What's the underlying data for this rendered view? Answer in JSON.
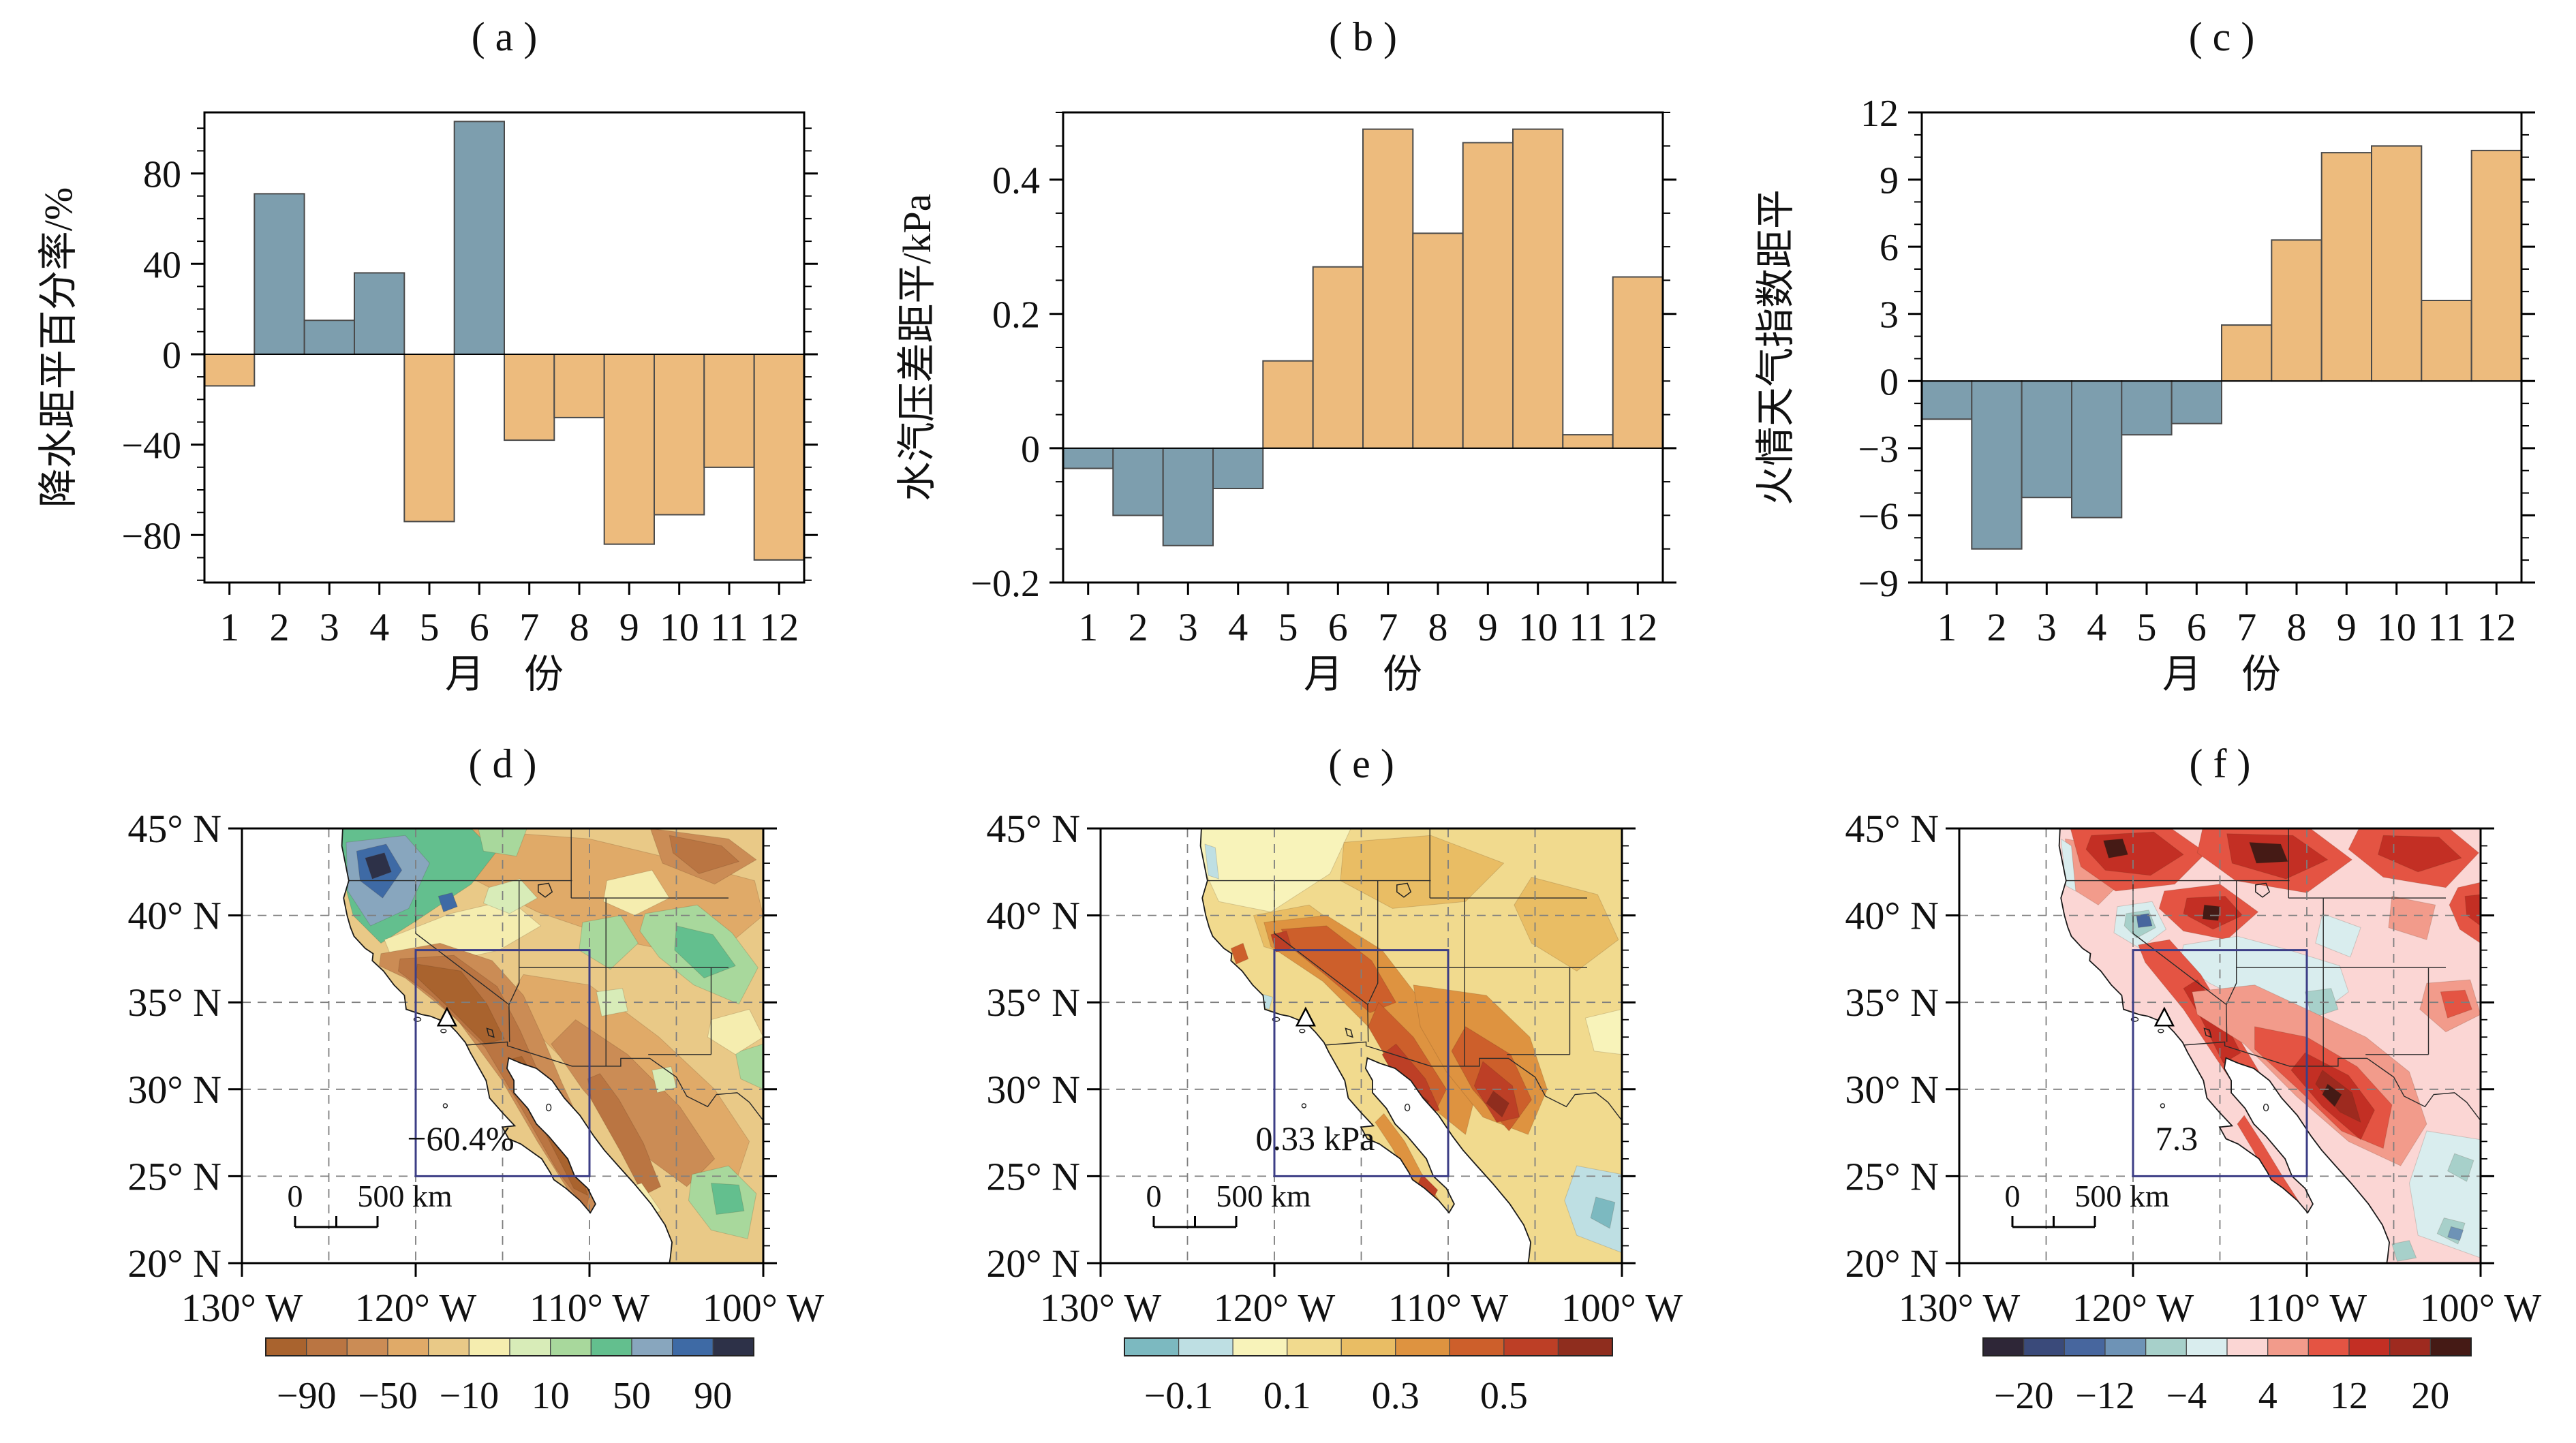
{
  "months": [
    "1",
    "2",
    "3",
    "4",
    "5",
    "6",
    "7",
    "8",
    "9",
    "10",
    "11",
    "12"
  ],
  "map_shared": {
    "lat_tick_values": [
      45,
      40,
      35,
      30,
      25,
      20
    ],
    "lat_tick_labels": [
      "45° N",
      "40° N",
      "35° N",
      "30° N",
      "25° N",
      "20° N"
    ],
    "lon_tick_values": [
      130,
      120,
      110,
      100
    ],
    "lon_tick_labels": [
      "130° W",
      "120° W",
      "110° W",
      "100° W"
    ],
    "study_box": {
      "lon_w_max": 120,
      "lon_w_min": 110,
      "lat_min": 25,
      "lat_max": 38
    },
    "marker": {
      "lon_w": 118.2,
      "lat": 34.1
    },
    "scale_bar": {
      "zero_label": "0",
      "label": "500 km"
    }
  },
  "chart_data": [
    {
      "type": "bar",
      "panel": "a",
      "title": "( a )",
      "xlabel": "月　份",
      "ylabel": "降水距平百分率/%",
      "unit": "%",
      "categories": [
        "1",
        "2",
        "3",
        "4",
        "5",
        "6",
        "7",
        "8",
        "9",
        "10",
        "11",
        "12"
      ],
      "values": [
        -14,
        71,
        15,
        36,
        -74,
        103,
        -38,
        -28,
        -84,
        -71,
        -50,
        -91
      ],
      "ylim": [
        -101,
        107
      ],
      "yticks": [
        -80,
        -40,
        0,
        40,
        80
      ],
      "ytick_labels": [
        "−80",
        "−40",
        "0",
        "40",
        "80"
      ],
      "minor_tick_step": 10,
      "positive_color": "#7d9eae",
      "negative_color": "#edbb7d",
      "grid": false,
      "legend": false
    },
    {
      "type": "bar",
      "panel": "b",
      "title": "( b )",
      "xlabel": "月　份",
      "ylabel": "水汽压差距平/kPa",
      "unit": "kPa",
      "categories": [
        "1",
        "2",
        "3",
        "4",
        "5",
        "6",
        "7",
        "8",
        "9",
        "10",
        "11",
        "12"
      ],
      "values": [
        -0.03,
        -0.1,
        -0.145,
        -0.06,
        0.13,
        0.27,
        0.475,
        0.32,
        0.455,
        0.475,
        0.02,
        0.255
      ],
      "ylim": [
        -0.2,
        0.5
      ],
      "yticks": [
        -0.2,
        0,
        0.2,
        0.4
      ],
      "ytick_labels": [
        "−0.2",
        "0",
        "0.2",
        "0.4"
      ],
      "minor_tick_step": 0.05,
      "positive_color": "#edbb7d",
      "negative_color": "#7d9eae",
      "grid": false,
      "legend": false
    },
    {
      "type": "bar",
      "panel": "c",
      "title": "( c )",
      "xlabel": "月　份",
      "ylabel": "火情天气指数距平",
      "unit": "",
      "categories": [
        "1",
        "2",
        "3",
        "4",
        "5",
        "6",
        "7",
        "8",
        "9",
        "10",
        "11",
        "12"
      ],
      "values": [
        -1.7,
        -7.5,
        -5.2,
        -6.1,
        -2.4,
        -1.9,
        2.5,
        6.3,
        10.2,
        10.5,
        3.6,
        10.3
      ],
      "ylim": [
        -9,
        12
      ],
      "yticks": [
        -9,
        -6,
        -3,
        0,
        3,
        6,
        9,
        12
      ],
      "ytick_labels": [
        "−9",
        "−6",
        "−3",
        "0",
        "3",
        "6",
        "9",
        "12"
      ],
      "minor_tick_step": 1,
      "positive_color": "#edbb7d",
      "negative_color": "#7d9eae",
      "grid": false,
      "legend": false
    },
    {
      "type": "heatmap",
      "panel": "d",
      "title": "( d )",
      "units": "%",
      "annotation": "−60.4%",
      "lon_range_w": [
        130,
        100
      ],
      "lat_range_n": [
        20,
        45
      ],
      "base_color_index": 4,
      "colorbar_colors": [
        "#a9632e",
        "#ba7542",
        "#cb8c55",
        "#e0aa68",
        "#e9c987",
        "#f5edaf",
        "#d8ecb8",
        "#a8d89c",
        "#63bf8e",
        "#88a6be",
        "#3e6aa5",
        "#2d3148"
      ],
      "colorbar_ticks": [
        -90,
        -50,
        -10,
        10,
        50,
        90
      ],
      "colorbar_tick_labels": [
        "−90",
        "−50",
        "−10",
        "10",
        "50",
        "90"
      ],
      "colorbar_tick_positions": [
        1,
        3,
        5,
        7,
        9,
        11
      ]
    },
    {
      "type": "heatmap",
      "panel": "e",
      "title": "( e )",
      "units": "kPa",
      "annotation": "0.33 kPa",
      "lon_range_w": [
        130,
        100
      ],
      "lat_range_n": [
        20,
        45
      ],
      "base_color_index": 3,
      "colorbar_colors": [
        "#7cb9c0",
        "#bedfe3",
        "#f8f3ba",
        "#f1da8e",
        "#e9bd64",
        "#de9340",
        "#cd5f2b",
        "#bd3f26",
        "#8f2d1e"
      ],
      "colorbar_ticks": [
        -0.1,
        0.1,
        0.3,
        0.5
      ],
      "colorbar_tick_labels": [
        "−0.1",
        "0.1",
        "0.3",
        "0.5"
      ],
      "colorbar_tick_positions": [
        1,
        3,
        5,
        7
      ]
    },
    {
      "type": "heatmap",
      "panel": "f",
      "title": "( f )",
      "units": "",
      "annotation": "7.3",
      "lon_range_w": [
        130,
        100
      ],
      "lat_range_n": [
        20,
        45
      ],
      "base_color_index": 6,
      "colorbar_colors": [
        "#2e2637",
        "#3a4a7a",
        "#47669e",
        "#6e93b6",
        "#a7d0ca",
        "#d9edee",
        "#fbd6d4",
        "#f29b8b",
        "#e45443",
        "#c32f24",
        "#9e2a1f",
        "#451a15"
      ],
      "colorbar_ticks": [
        -20,
        -12,
        -4,
        4,
        12,
        20
      ],
      "colorbar_tick_labels": [
        "−20",
        "−12",
        "−4",
        "4",
        "12",
        "20"
      ],
      "colorbar_tick_positions": [
        1,
        3,
        5,
        7,
        9,
        11
      ]
    }
  ]
}
